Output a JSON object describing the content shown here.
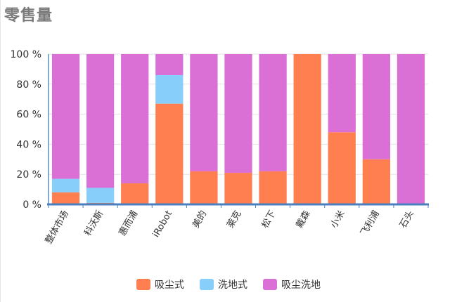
{
  "title": "零售量",
  "colors": {
    "吸尘式": "#FF7F50",
    "洗地式": "#87CEFA",
    "吸尘洗地": "#DA70D6"
  },
  "chart_data": {
    "type": "bar",
    "stacked": true,
    "title": "零售量",
    "categories": [
      "整体市场",
      "科沃斯",
      "惠而浦",
      "iRobot",
      "美的",
      "莱克",
      "松下",
      "戴森",
      "小米",
      "飞利浦",
      "石头"
    ],
    "series": [
      {
        "name": "吸尘式",
        "values": [
          8,
          1,
          14,
          67,
          22,
          21,
          22,
          100,
          48,
          30,
          0
        ]
      },
      {
        "name": "洗地式",
        "values": [
          9,
          10,
          0,
          19,
          0,
          0,
          0,
          0,
          0,
          0,
          0
        ]
      },
      {
        "name": "吸尘洗地",
        "values": [
          83,
          89,
          86,
          14,
          78,
          79,
          78,
          0,
          52,
          70,
          100
        ]
      }
    ],
    "ylim": [
      0,
      100
    ],
    "yticks": [
      "0 %",
      "20 %",
      "40 %",
      "60 %",
      "80 %",
      "100 %"
    ],
    "ytick_values": [
      0,
      20,
      40,
      60,
      80,
      100
    ],
    "grid": true,
    "legend_position": "bottom"
  }
}
